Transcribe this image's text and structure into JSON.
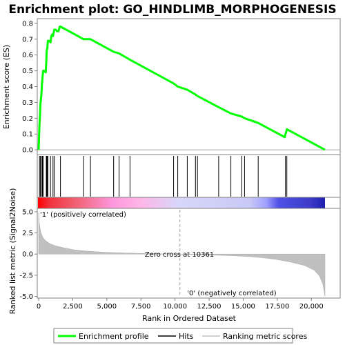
{
  "chart_data": {
    "type": "line",
    "title": "Enrichment plot: GO_HINDLIMB_MORPHOGENESIS",
    "colors": {
      "profile": "#00ff00",
      "hits": "#000000",
      "ranking_fill": "#c0c0c0",
      "positive_label": "#cc0000",
      "negative_label": "#0000cc"
    },
    "top_panel": {
      "ylabel": "Enrichment score (ES)",
      "ylim": [
        -0.03,
        0.83
      ],
      "yticks": [
        "0.0",
        "0.1",
        "0.2",
        "0.3",
        "0.4",
        "0.5",
        "0.6",
        "0.7",
        "0.8"
      ],
      "series": [
        {
          "name": "Enrichment profile",
          "x": [
            0,
            30,
            60,
            100,
            130,
            200,
            240,
            280,
            330,
            420,
            520,
            560,
            590,
            640,
            680,
            760,
            870,
            930,
            1000,
            1050,
            1150,
            1250,
            1350,
            1450,
            1550,
            1600,
            3300,
            3380,
            3700,
            3800,
            5500,
            5900,
            6700,
            9900,
            10200,
            10900,
            11500,
            11650,
            13200,
            14100,
            14900,
            15100,
            16100,
            18050,
            18100,
            18150,
            18200,
            21000
          ],
          "y": [
            0.0,
            0.08,
            0.16,
            0.22,
            0.29,
            0.35,
            0.41,
            0.45,
            0.5,
            0.5,
            0.49,
            0.56,
            0.63,
            0.64,
            0.69,
            0.69,
            0.68,
            0.72,
            0.73,
            0.72,
            0.76,
            0.76,
            0.75,
            0.75,
            0.78,
            0.78,
            0.7,
            0.7,
            0.7,
            0.7,
            0.62,
            0.61,
            0.57,
            0.42,
            0.4,
            0.38,
            0.35,
            0.34,
            0.27,
            0.23,
            0.21,
            0.2,
            0.17,
            0.08,
            0.1,
            0.11,
            0.13,
            0.0
          ]
        }
      ]
    },
    "hits": [
      60,
      130,
      200,
      280,
      330,
      560,
      590,
      640,
      680,
      870,
      1050,
      1150,
      1600,
      3300,
      3800,
      5500,
      5900,
      6700,
      9900,
      10200,
      10900,
      11500,
      11650,
      13200,
      14100,
      14900,
      15100,
      16100,
      18100,
      18200
    ],
    "heatmap_bar": {
      "stops": [
        {
          "x": 0,
          "color": "#ff0000"
        },
        {
          "x": 800,
          "color": "#f0303a"
        },
        {
          "x": 2700,
          "color": "#f06070"
        },
        {
          "x": 5400,
          "color": "#ff96dc"
        },
        {
          "x": 7400,
          "color": "#ffb4e6"
        },
        {
          "x": 10300,
          "color": "#d7d7fa"
        },
        {
          "x": 15500,
          "color": "#c8c8f5"
        },
        {
          "x": 16700,
          "color": "#a0a0ff"
        },
        {
          "x": 17600,
          "color": "#5050e6"
        },
        {
          "x": 19900,
          "color": "#3c3cc8"
        },
        {
          "x": 21000,
          "color": "#2020b0"
        }
      ]
    },
    "bottom_panel": {
      "xlabel": "Rank in Ordered Dataset",
      "ylabel": "Ranked list metric (Signal2Noise)",
      "ylim": [
        -5.2,
        5.4
      ],
      "yticks": [
        "-5.0",
        "-2.5",
        "0.0",
        "2.5",
        "5.0"
      ],
      "xlim": [
        0,
        22000
      ],
      "xticks": [
        "0",
        "2,500",
        "5,000",
        "7,500",
        "10,000",
        "12,500",
        "15,000",
        "17,500",
        "20,000"
      ],
      "ranking_metric": {
        "x": [
          0,
          50,
          150,
          300,
          500,
          800,
          1200,
          1800,
          2600,
          3500,
          5000,
          7000,
          9000,
          10361,
          12000,
          14000,
          15500,
          16500,
          17500,
          18500,
          19500,
          20200,
          20600,
          20850,
          21000
        ],
        "y": [
          4.9,
          3.6,
          2.6,
          2.0,
          1.6,
          1.25,
          1.0,
          0.75,
          0.5,
          0.35,
          0.2,
          0.1,
          0.03,
          0.0,
          -0.08,
          -0.18,
          -0.3,
          -0.45,
          -0.65,
          -0.95,
          -1.35,
          -1.9,
          -2.6,
          -3.6,
          -5.0
        ]
      },
      "zero_cross_text": "Zero cross at 10361",
      "zero_cross_x": 10361,
      "positive_label": "'1' (positively correlated)",
      "negative_label": "'0' (negatively correlated)"
    },
    "legend": {
      "placement": "bottom",
      "items": [
        "Enrichment profile",
        "Hits",
        "Ranking metric scores"
      ]
    }
  }
}
